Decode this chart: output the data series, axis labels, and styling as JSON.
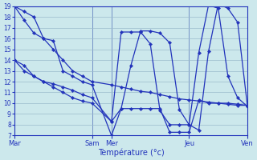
{
  "xlabel": "Température (°c)",
  "background_color": "#cce8ec",
  "line_color": "#2233bb",
  "grid_color": "#99bbcc",
  "ylim": [
    7,
    19
  ],
  "xlim": [
    0,
    48
  ],
  "yticks": [
    7,
    8,
    9,
    10,
    11,
    12,
    13,
    14,
    15,
    16,
    17,
    18,
    19
  ],
  "day_ticks_x": [
    0,
    16,
    20,
    36,
    48
  ],
  "day_labels": [
    "Mar",
    "Sam",
    "Mer",
    "Jeu",
    "Ven"
  ],
  "series": [
    {
      "x": [
        0,
        2,
        4,
        6,
        8,
        10,
        12,
        14,
        16,
        20,
        22,
        24,
        26,
        28,
        30,
        32,
        34,
        36,
        38,
        40,
        42,
        44,
        46,
        48
      ],
      "y": [
        19,
        18.5,
        18,
        16,
        15,
        14,
        13,
        12.5,
        12,
        11.7,
        11.5,
        11.3,
        11.1,
        11.0,
        10.8,
        10.6,
        10.4,
        10.3,
        10.2,
        10.1,
        10.0,
        9.9,
        9.8,
        9.8
      ]
    },
    {
      "x": [
        0,
        2,
        4,
        6,
        8,
        10,
        12,
        14,
        16,
        20,
        22,
        24,
        26,
        28,
        30,
        32,
        34,
        36,
        38,
        40,
        42,
        44,
        46,
        48
      ],
      "y": [
        19,
        17.7,
        16.5,
        16,
        15.8,
        13,
        12.5,
        12,
        11.7,
        7.0,
        9.5,
        13.5,
        16.7,
        16.7,
        16.5,
        15.6,
        9.4,
        8.0,
        7.5,
        14.8,
        19.2,
        18.8,
        17.5,
        9.8
      ]
    },
    {
      "x": [
        0,
        2,
        4,
        6,
        8,
        10,
        12,
        14,
        16,
        20,
        22,
        24,
        26,
        28,
        30,
        32,
        34,
        36,
        38,
        40,
        42,
        44,
        46,
        48
      ],
      "y": [
        14,
        13.5,
        12.5,
        12,
        11.5,
        11.0,
        10.5,
        10.2,
        10.0,
        8.3,
        9.5,
        9.5,
        9.5,
        9.5,
        9.5,
        7.3,
        7.3,
        7.3,
        10.3,
        10.0,
        10.0,
        10.0,
        9.9,
        9.8
      ]
    },
    {
      "x": [
        0,
        2,
        4,
        6,
        8,
        10,
        12,
        14,
        16,
        20,
        22,
        24,
        26,
        28,
        30,
        32,
        34,
        36,
        38,
        40,
        42,
        44,
        46,
        48
      ],
      "y": [
        14,
        13,
        12.5,
        12,
        11.8,
        11.5,
        11.2,
        10.8,
        10.5,
        8.3,
        16.6,
        16.6,
        16.6,
        15.5,
        9.3,
        8.0,
        8.0,
        8.0,
        14.7,
        19.1,
        18.8,
        12.5,
        10.5,
        9.7
      ]
    }
  ],
  "vlines": [
    16,
    20,
    36,
    48
  ]
}
